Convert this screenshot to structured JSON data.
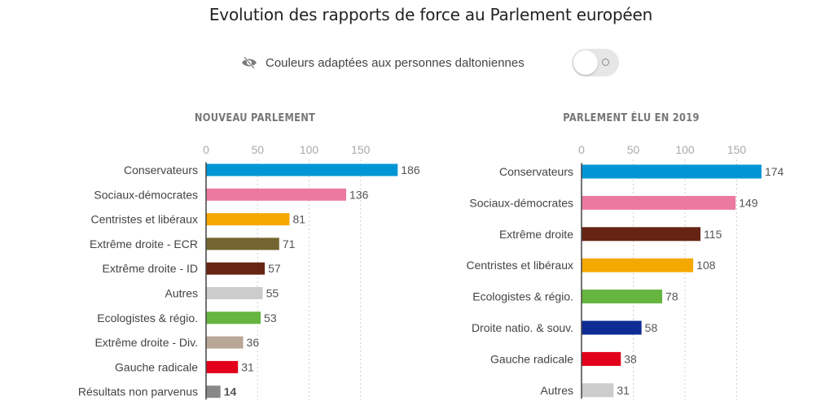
{
  "header": {
    "title": "Evolution des rapports de force au Parlement européen",
    "colorblind_label": "Couleurs adaptées aux personnes daltoniennes",
    "colorblind_icon": "eye-slash-icon",
    "colorblind_enabled": false
  },
  "chart_data": [
    {
      "type": "bar",
      "orientation": "horizontal",
      "title": "NOUVEAU PARLEMENT",
      "xlabel": "",
      "ylabel": "",
      "xlim": [
        0,
        190
      ],
      "ticks": [
        0,
        50,
        100,
        150
      ],
      "grid": true,
      "categories": [
        "Conservateurs",
        "Sociaux-démocrates",
        "Centristes et libéraux",
        "Extrême droite - ECR",
        "Extrême droite - ID",
        "Autres",
        "Ecologistes & régio.",
        "Extrême droite - Div.",
        "Gauche radicale",
        "Résultats non parvenus"
      ],
      "values": [
        186,
        136,
        81,
        71,
        57,
        55,
        53,
        36,
        31,
        14
      ],
      "colors": [
        "#0096d6",
        "#ec7aa0",
        "#f5a800",
        "#746530",
        "#662414",
        "#cccccc",
        "#66b540",
        "#b8a697",
        "#e2001a",
        "#888888"
      ],
      "bold_values": [
        false,
        false,
        false,
        false,
        false,
        false,
        false,
        false,
        false,
        true
      ]
    },
    {
      "type": "bar",
      "orientation": "horizontal",
      "title": "PARLEMENT ÉLU EN 2019",
      "xlabel": "",
      "ylabel": "",
      "xlim": [
        0,
        190
      ],
      "ticks": [
        0,
        50,
        100,
        150
      ],
      "grid": true,
      "categories": [
        "Conservateurs",
        "Sociaux-démocrates",
        "Extrême droite",
        "Centristes et libéraux",
        "Ecologistes & régio.",
        "Droite natio. & souv.",
        "Gauche radicale",
        "Autres"
      ],
      "values": [
        174,
        149,
        115,
        108,
        78,
        58,
        38,
        31
      ],
      "colors": [
        "#0096d6",
        "#ec7aa0",
        "#662414",
        "#f5a800",
        "#66b540",
        "#0f2b94",
        "#e2001a",
        "#cccccc"
      ],
      "bold_values": [
        false,
        false,
        false,
        false,
        false,
        false,
        false,
        false
      ]
    }
  ]
}
